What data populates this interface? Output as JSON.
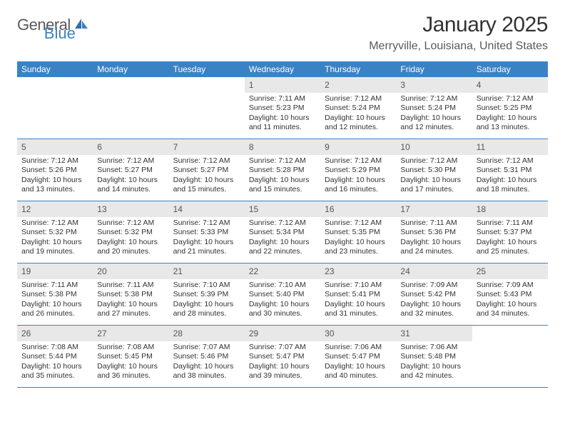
{
  "logo": {
    "part1": "General",
    "part2": "Blue"
  },
  "title": "January 2025",
  "location": "Merryville, Louisiana, United States",
  "header_bg": "#3b82c4",
  "daynum_bg": "#e8e8e8",
  "border_color": "#3b82c4",
  "weekdays": [
    "Sunday",
    "Monday",
    "Tuesday",
    "Wednesday",
    "Thursday",
    "Friday",
    "Saturday"
  ],
  "weeks": [
    [
      null,
      null,
      null,
      {
        "n": "1",
        "sr": "Sunrise: 7:11 AM",
        "ss": "Sunset: 5:23 PM",
        "d1": "Daylight: 10 hours",
        "d2": "and 11 minutes."
      },
      {
        "n": "2",
        "sr": "Sunrise: 7:12 AM",
        "ss": "Sunset: 5:24 PM",
        "d1": "Daylight: 10 hours",
        "d2": "and 12 minutes."
      },
      {
        "n": "3",
        "sr": "Sunrise: 7:12 AM",
        "ss": "Sunset: 5:24 PM",
        "d1": "Daylight: 10 hours",
        "d2": "and 12 minutes."
      },
      {
        "n": "4",
        "sr": "Sunrise: 7:12 AM",
        "ss": "Sunset: 5:25 PM",
        "d1": "Daylight: 10 hours",
        "d2": "and 13 minutes."
      }
    ],
    [
      {
        "n": "5",
        "sr": "Sunrise: 7:12 AM",
        "ss": "Sunset: 5:26 PM",
        "d1": "Daylight: 10 hours",
        "d2": "and 13 minutes."
      },
      {
        "n": "6",
        "sr": "Sunrise: 7:12 AM",
        "ss": "Sunset: 5:27 PM",
        "d1": "Daylight: 10 hours",
        "d2": "and 14 minutes."
      },
      {
        "n": "7",
        "sr": "Sunrise: 7:12 AM",
        "ss": "Sunset: 5:27 PM",
        "d1": "Daylight: 10 hours",
        "d2": "and 15 minutes."
      },
      {
        "n": "8",
        "sr": "Sunrise: 7:12 AM",
        "ss": "Sunset: 5:28 PM",
        "d1": "Daylight: 10 hours",
        "d2": "and 15 minutes."
      },
      {
        "n": "9",
        "sr": "Sunrise: 7:12 AM",
        "ss": "Sunset: 5:29 PM",
        "d1": "Daylight: 10 hours",
        "d2": "and 16 minutes."
      },
      {
        "n": "10",
        "sr": "Sunrise: 7:12 AM",
        "ss": "Sunset: 5:30 PM",
        "d1": "Daylight: 10 hours",
        "d2": "and 17 minutes."
      },
      {
        "n": "11",
        "sr": "Sunrise: 7:12 AM",
        "ss": "Sunset: 5:31 PM",
        "d1": "Daylight: 10 hours",
        "d2": "and 18 minutes."
      }
    ],
    [
      {
        "n": "12",
        "sr": "Sunrise: 7:12 AM",
        "ss": "Sunset: 5:32 PM",
        "d1": "Daylight: 10 hours",
        "d2": "and 19 minutes."
      },
      {
        "n": "13",
        "sr": "Sunrise: 7:12 AM",
        "ss": "Sunset: 5:32 PM",
        "d1": "Daylight: 10 hours",
        "d2": "and 20 minutes."
      },
      {
        "n": "14",
        "sr": "Sunrise: 7:12 AM",
        "ss": "Sunset: 5:33 PM",
        "d1": "Daylight: 10 hours",
        "d2": "and 21 minutes."
      },
      {
        "n": "15",
        "sr": "Sunrise: 7:12 AM",
        "ss": "Sunset: 5:34 PM",
        "d1": "Daylight: 10 hours",
        "d2": "and 22 minutes."
      },
      {
        "n": "16",
        "sr": "Sunrise: 7:12 AM",
        "ss": "Sunset: 5:35 PM",
        "d1": "Daylight: 10 hours",
        "d2": "and 23 minutes."
      },
      {
        "n": "17",
        "sr": "Sunrise: 7:11 AM",
        "ss": "Sunset: 5:36 PM",
        "d1": "Daylight: 10 hours",
        "d2": "and 24 minutes."
      },
      {
        "n": "18",
        "sr": "Sunrise: 7:11 AM",
        "ss": "Sunset: 5:37 PM",
        "d1": "Daylight: 10 hours",
        "d2": "and 25 minutes."
      }
    ],
    [
      {
        "n": "19",
        "sr": "Sunrise: 7:11 AM",
        "ss": "Sunset: 5:38 PM",
        "d1": "Daylight: 10 hours",
        "d2": "and 26 minutes."
      },
      {
        "n": "20",
        "sr": "Sunrise: 7:11 AM",
        "ss": "Sunset: 5:38 PM",
        "d1": "Daylight: 10 hours",
        "d2": "and 27 minutes."
      },
      {
        "n": "21",
        "sr": "Sunrise: 7:10 AM",
        "ss": "Sunset: 5:39 PM",
        "d1": "Daylight: 10 hours",
        "d2": "and 28 minutes."
      },
      {
        "n": "22",
        "sr": "Sunrise: 7:10 AM",
        "ss": "Sunset: 5:40 PM",
        "d1": "Daylight: 10 hours",
        "d2": "and 30 minutes."
      },
      {
        "n": "23",
        "sr": "Sunrise: 7:10 AM",
        "ss": "Sunset: 5:41 PM",
        "d1": "Daylight: 10 hours",
        "d2": "and 31 minutes."
      },
      {
        "n": "24",
        "sr": "Sunrise: 7:09 AM",
        "ss": "Sunset: 5:42 PM",
        "d1": "Daylight: 10 hours",
        "d2": "and 32 minutes."
      },
      {
        "n": "25",
        "sr": "Sunrise: 7:09 AM",
        "ss": "Sunset: 5:43 PM",
        "d1": "Daylight: 10 hours",
        "d2": "and 34 minutes."
      }
    ],
    [
      {
        "n": "26",
        "sr": "Sunrise: 7:08 AM",
        "ss": "Sunset: 5:44 PM",
        "d1": "Daylight: 10 hours",
        "d2": "and 35 minutes."
      },
      {
        "n": "27",
        "sr": "Sunrise: 7:08 AM",
        "ss": "Sunset: 5:45 PM",
        "d1": "Daylight: 10 hours",
        "d2": "and 36 minutes."
      },
      {
        "n": "28",
        "sr": "Sunrise: 7:07 AM",
        "ss": "Sunset: 5:46 PM",
        "d1": "Daylight: 10 hours",
        "d2": "and 38 minutes."
      },
      {
        "n": "29",
        "sr": "Sunrise: 7:07 AM",
        "ss": "Sunset: 5:47 PM",
        "d1": "Daylight: 10 hours",
        "d2": "and 39 minutes."
      },
      {
        "n": "30",
        "sr": "Sunrise: 7:06 AM",
        "ss": "Sunset: 5:47 PM",
        "d1": "Daylight: 10 hours",
        "d2": "and 40 minutes."
      },
      {
        "n": "31",
        "sr": "Sunrise: 7:06 AM",
        "ss": "Sunset: 5:48 PM",
        "d1": "Daylight: 10 hours",
        "d2": "and 42 minutes."
      },
      null
    ]
  ]
}
